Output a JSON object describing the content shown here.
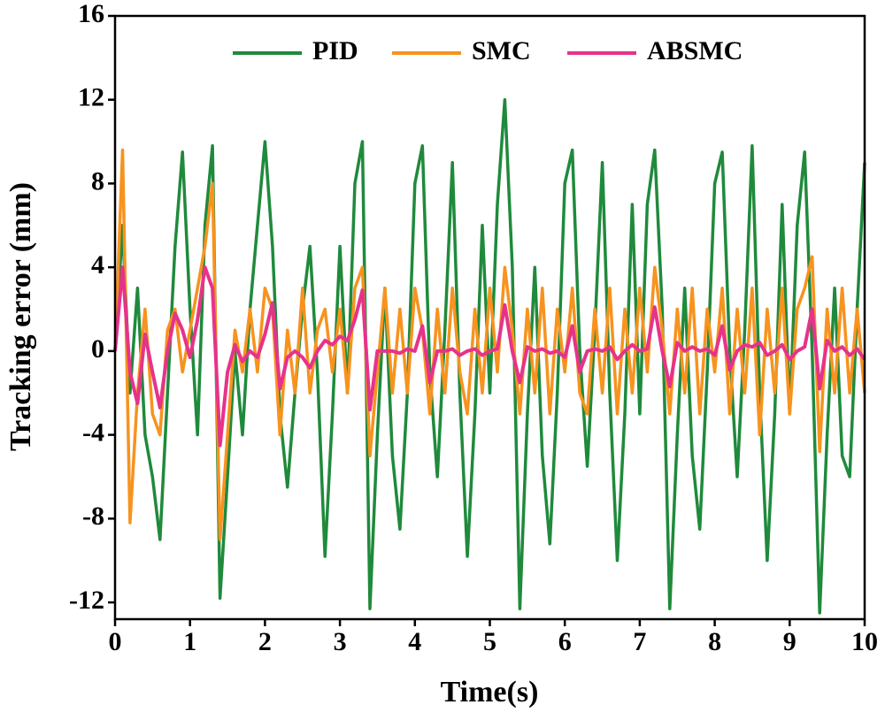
{
  "chart_data": {
    "type": "line",
    "x_label": "Time(s)",
    "y_label": "Tracking error (mm)",
    "xlim": [
      0,
      10
    ],
    "ylim": [
      -12.8,
      16
    ],
    "xticks": [
      0,
      1,
      2,
      3,
      4,
      5,
      6,
      7,
      8,
      9,
      10
    ],
    "yticks": [
      -12,
      -8,
      -4,
      0,
      4,
      8,
      12,
      16
    ],
    "legend": "upper center",
    "x": [
      0,
      0.1,
      0.2,
      0.3,
      0.4,
      0.5,
      0.6,
      0.7,
      0.8,
      0.9,
      1,
      1.1,
      1.2,
      1.3,
      1.4,
      1.5,
      1.6,
      1.7,
      1.8,
      1.9,
      2,
      2.1,
      2.2,
      2.3,
      2.4,
      2.5,
      2.6,
      2.7,
      2.8,
      2.9,
      3,
      3.1,
      3.2,
      3.3,
      3.4,
      3.5,
      3.6,
      3.7,
      3.8,
      3.9,
      4,
      4.1,
      4.2,
      4.3,
      4.4,
      4.5,
      4.6,
      4.7,
      4.8,
      4.9,
      5,
      5.1,
      5.2,
      5.3,
      5.4,
      5.5,
      5.6,
      5.7,
      5.8,
      5.9,
      6,
      6.1,
      6.2,
      6.3,
      6.4,
      6.5,
      6.6,
      6.7,
      6.8,
      6.9,
      7,
      7.1,
      7.2,
      7.3,
      7.4,
      7.5,
      7.6,
      7.7,
      7.8,
      7.9,
      8,
      8.1,
      8.2,
      8.3,
      8.4,
      8.5,
      8.6,
      8.7,
      8.8,
      8.9,
      9,
      9.1,
      9.2,
      9.3,
      9.4,
      9.5,
      9.6,
      9.7,
      9.8,
      9.9,
      10
    ],
    "series": [
      {
        "name": "PID",
        "color": "#1f8a3c",
        "values": [
          0,
          6,
          -2,
          3,
          -4,
          -6,
          -9,
          -2,
          5,
          9.5,
          2,
          -4,
          6,
          9.8,
          -11.8,
          -6,
          0,
          -4,
          2,
          6,
          10,
          5,
          -3,
          -6.5,
          -2,
          2,
          5,
          -1,
          -9.8,
          -3,
          5,
          -2,
          8,
          10,
          -12.3,
          -4,
          3,
          -5,
          -8.5,
          -2,
          8,
          9.8,
          -1,
          -6,
          1,
          9,
          -2,
          -9.8,
          -3,
          6,
          -2,
          7,
          12,
          4,
          -12.3,
          -3,
          4,
          -5,
          -9.2,
          -2,
          8,
          9.6,
          0,
          -5.5,
          1,
          9,
          -2,
          -10,
          -3,
          7,
          -3,
          7,
          9.6,
          2,
          -12.3,
          -4,
          3,
          -5,
          -8.5,
          -1,
          8,
          9.5,
          0,
          -6,
          1,
          9.8,
          -2,
          -10,
          -3,
          7,
          -3,
          6,
          9.5,
          0,
          -12.5,
          -4,
          3,
          -5,
          -6,
          2,
          9
        ]
      },
      {
        "name": "SMC",
        "color": "#f7931e",
        "values": [
          0,
          9.6,
          -8.2,
          -2,
          2,
          -3,
          -4,
          1,
          2,
          -1,
          1,
          3,
          5,
          8,
          -9,
          -4,
          1,
          -1,
          2,
          -1,
          3,
          2,
          -4,
          1,
          -2,
          3,
          -2,
          1,
          2,
          -1,
          2,
          -2,
          3,
          4,
          -5,
          -1,
          3,
          -2,
          2,
          -2,
          3,
          1,
          -3,
          2,
          -2,
          3,
          -1,
          -3,
          2,
          -2,
          3,
          -1,
          4,
          1,
          -3,
          2,
          -2,
          3,
          -3,
          2,
          -1,
          3,
          -2,
          -3,
          2,
          -2,
          3,
          -3,
          2,
          -2,
          3,
          -1,
          4,
          1,
          -3,
          2,
          -2,
          3,
          -3,
          2,
          -1,
          3,
          -3,
          2,
          -2,
          3,
          -4,
          2,
          -2,
          3,
          -3,
          2,
          3,
          4.5,
          -4.8,
          2,
          -2,
          3,
          -2,
          2,
          -2
        ]
      },
      {
        "name": "ABSMC",
        "color": "#e6338a",
        "values": [
          0,
          4,
          -1,
          -2.5,
          0.8,
          -1,
          -2.7,
          0,
          1.8,
          1,
          -0.3,
          1.5,
          4,
          3,
          -4.5,
          -1,
          0.3,
          -0.5,
          0,
          -0.3,
          0.8,
          2.3,
          -1.8,
          -0.3,
          0,
          -0.3,
          -0.8,
          0,
          0.5,
          0.3,
          0.7,
          0.5,
          1.5,
          2.9,
          -2.8,
          0,
          0,
          0,
          -0.1,
          0.1,
          0,
          1.2,
          -1.5,
          0,
          0,
          0.1,
          -0.2,
          0,
          0.1,
          -0.2,
          0,
          0.1,
          2.2,
          0,
          -1.5,
          0.2,
          0,
          0.1,
          -0.1,
          0,
          -0.3,
          1.2,
          -1,
          0,
          0.1,
          0,
          0.2,
          -0.4,
          0,
          0.3,
          0,
          0.1,
          2.1,
          0,
          -1.7,
          0.4,
          0,
          0.2,
          0,
          0.1,
          -0.2,
          1.2,
          -0.9,
          0,
          0.3,
          0.2,
          0.4,
          -0.2,
          0,
          0.3,
          -0.4,
          0,
          0.2,
          2,
          -1.8,
          0.5,
          0,
          0.2,
          -0.2,
          0.1,
          -0.4
        ]
      }
    ]
  }
}
